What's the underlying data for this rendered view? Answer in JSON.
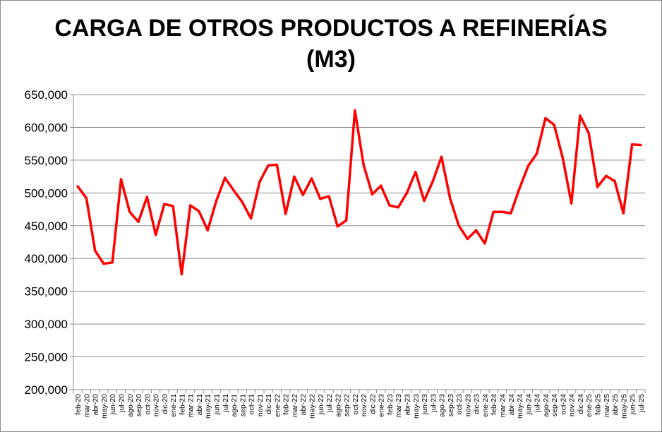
{
  "chart_data": {
    "type": "line",
    "title": "CARGA DE OTROS PRODUCTOS A REFINERÍAS",
    "subtitle": "(M3)",
    "xlabel": "",
    "ylabel": "",
    "ylim": [
      200000,
      650000
    ],
    "y_ticks": [
      "200,000",
      "250,000",
      "300,000",
      "350,000",
      "400,000",
      "450,000",
      "500,000",
      "550,000",
      "600,000",
      "650,000"
    ],
    "grid": "horizontal",
    "legend": "none",
    "line_color": "#ff0000",
    "categories": [
      "feb-20",
      "mar-20",
      "abr-20",
      "may-20",
      "jun-20",
      "jul-20",
      "ago-20",
      "sep-20",
      "oct-20",
      "nov-20",
      "dic-20",
      "ene-21",
      "feb-21",
      "mar-21",
      "abr-21",
      "may-21",
      "jun-21",
      "jul-21",
      "ago-21",
      "sep-21",
      "oct-21",
      "nov-21",
      "dic-21",
      "ene-22",
      "feb-22",
      "mar-22",
      "abr-22",
      "may-22",
      "jun-22",
      "jul-22",
      "ago-22",
      "sep-22",
      "oct-22",
      "nov-22",
      "dic-22",
      "ene-23",
      "feb-23",
      "mar-23",
      "abr-23",
      "may-23",
      "jun-23",
      "jul-23",
      "ago-23",
      "sep-23",
      "oct-23",
      "nov-23",
      "dic-23",
      "ene-24",
      "feb-24",
      "mar-24",
      "abr-24",
      "may-24",
      "jun-24",
      "jul-24",
      "ago-24",
      "sep-24",
      "oct-24",
      "nov-24",
      "dic-24",
      "ene-25",
      "feb-25",
      "mar-25",
      "abr-25",
      "may-25",
      "jun-25",
      "jul-25"
    ],
    "series": [
      {
        "values": [
          510000,
          492000,
          412000,
          392000,
          394000,
          521000,
          471000,
          456000,
          494000,
          436000,
          483000,
          480000,
          376000,
          481000,
          472000,
          443000,
          488000,
          523000,
          504000,
          486000,
          461000,
          517000,
          542000,
          543000,
          468000,
          525000,
          497000,
          522000,
          491000,
          495000,
          449000,
          458000,
          626000,
          543000,
          498000,
          511000,
          481000,
          478000,
          500000,
          532000,
          488000,
          518000,
          555000,
          491000,
          450000,
          430000,
          443000,
          423000,
          471000,
          471000,
          469000,
          507000,
          541000,
          560000,
          614000,
          604000,
          553000,
          484000,
          618000,
          591000,
          509000,
          526000,
          518000,
          469000,
          574000,
          573000
        ]
      }
    ]
  }
}
